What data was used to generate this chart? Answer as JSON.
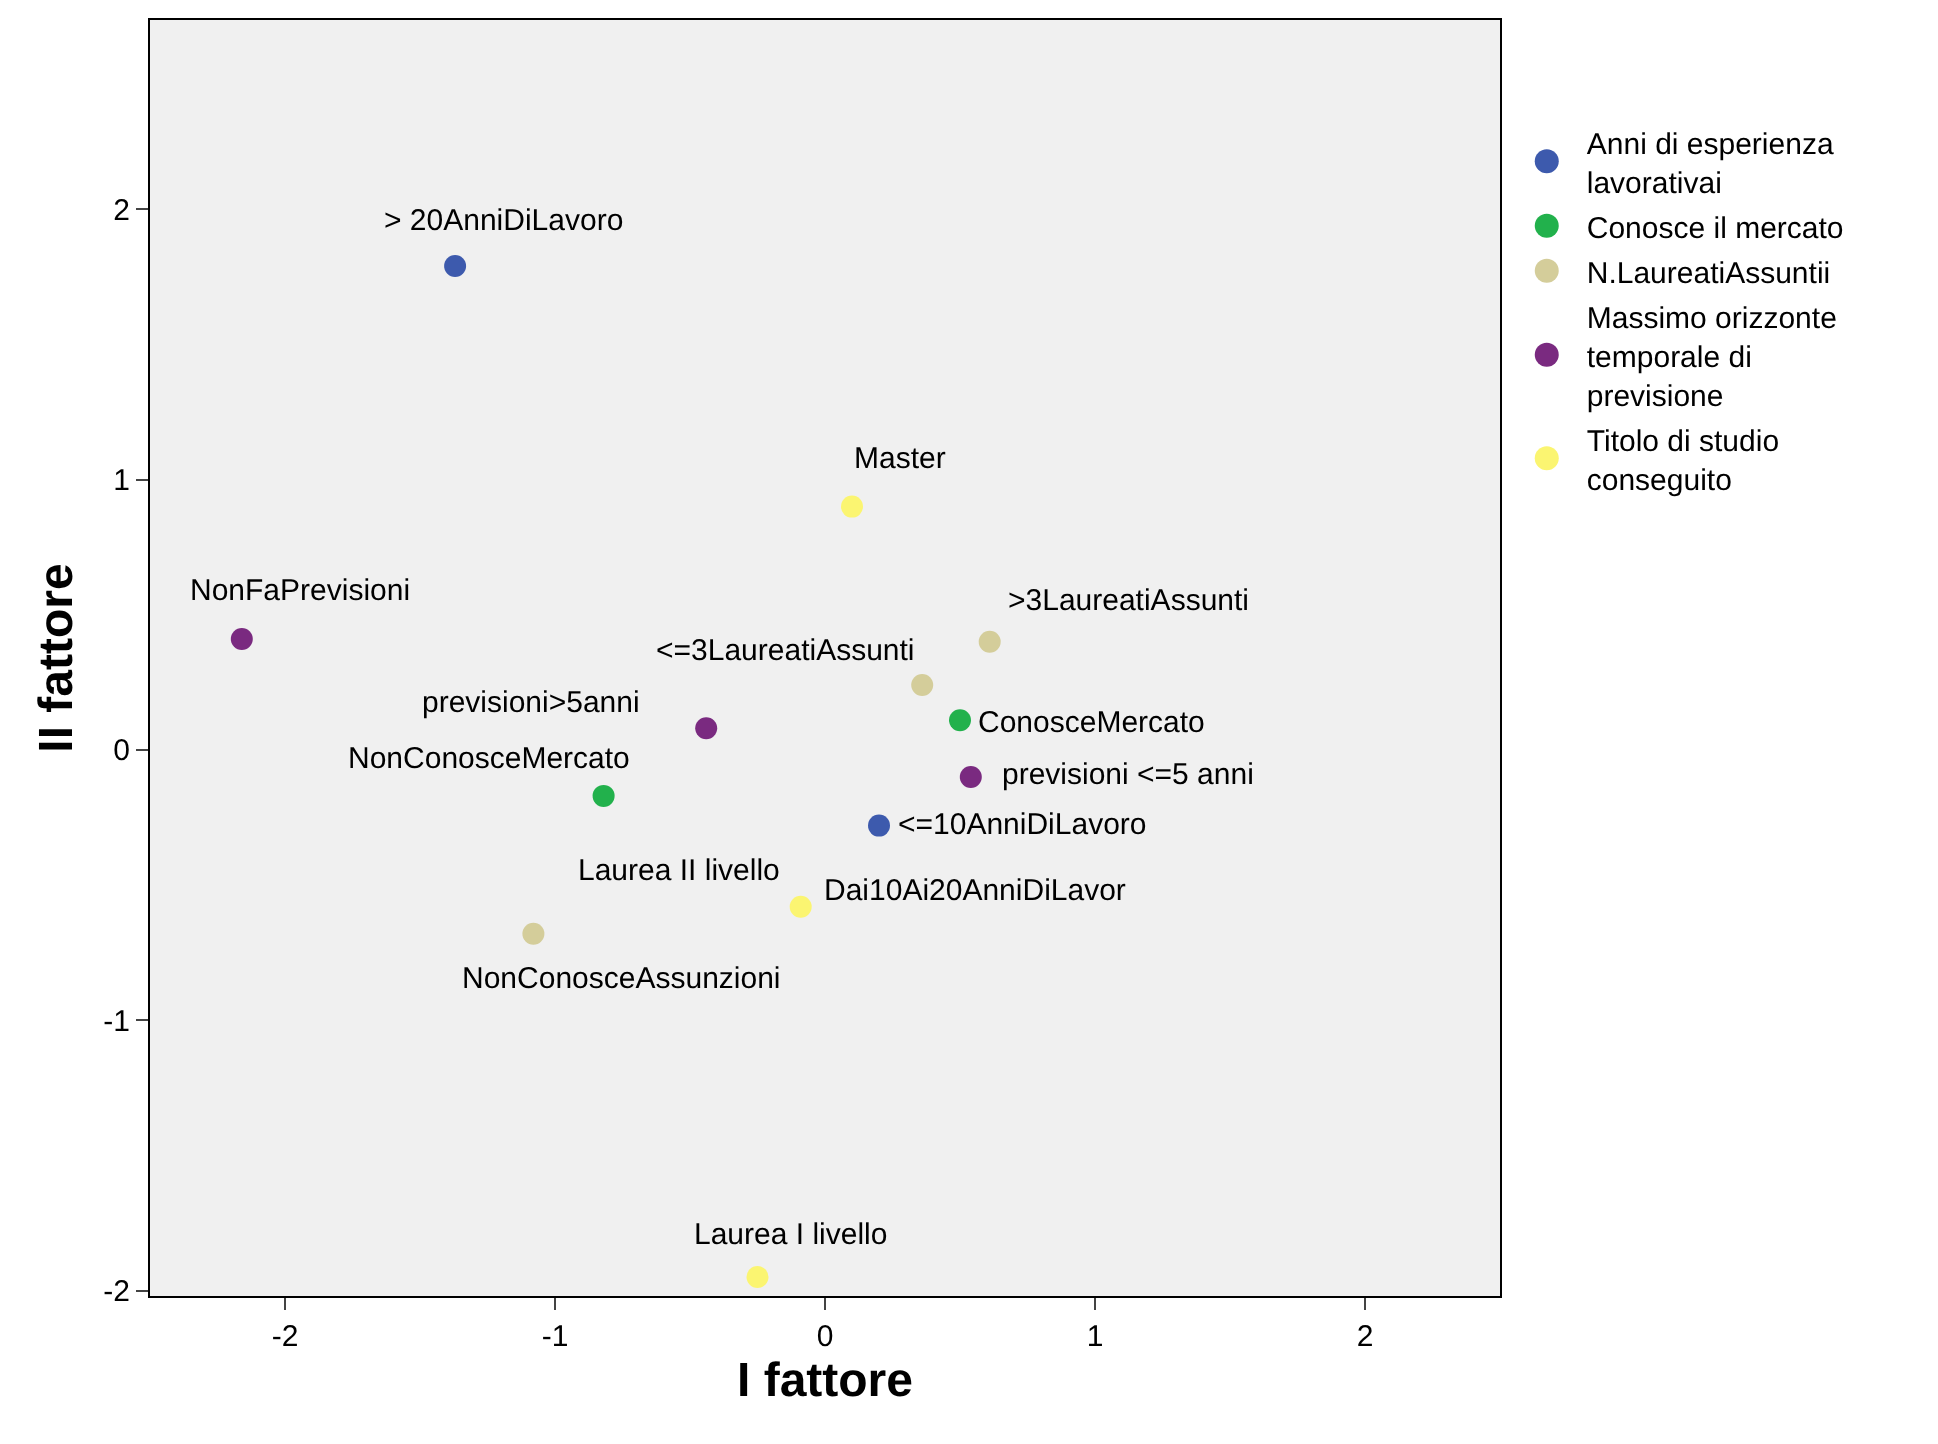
{
  "chart_data": {
    "type": "scatter",
    "xlabel": "I fattore",
    "ylabel": "II fattore",
    "xlim": [
      -2.5,
      2.5
    ],
    "ylim": [
      -2.02,
      2.7
    ],
    "xticks": [
      -2,
      -1,
      0,
      1,
      2
    ],
    "yticks": [
      -2,
      -1,
      0,
      1,
      2
    ],
    "grid": false,
    "legend": "top right",
    "marker": "circle",
    "series": [
      {
        "name": "Anni di esperienza lavorativai",
        "color": "#3d5aad",
        "x": [
          -1.37,
          0.2
        ],
        "values": [
          1.79,
          -0.28
        ]
      },
      {
        "name": "Conosce il mercato",
        "color": "#22b14c",
        "x": [
          0.5,
          -0.82
        ],
        "values": [
          0.11,
          -0.17
        ]
      },
      {
        "name": "N.LaureatiAssuntii",
        "color": "#d4cd9a",
        "x": [
          0.61,
          0.36,
          -1.08
        ],
        "values": [
          0.4,
          0.24,
          -0.68
        ]
      },
      {
        "name": "Massimo orizzonte temporale di previsione",
        "color": "#7a2a80",
        "x": [
          -2.16,
          -0.44,
          0.54
        ],
        "values": [
          0.41,
          0.08,
          -0.1
        ]
      },
      {
        "name": "Titolo di studio conseguito",
        "color": "#fbf571",
        "x": [
          0.1,
          -0.09,
          -0.25
        ],
        "values": [
          0.9,
          -0.58,
          -1.95
        ]
      }
    ],
    "annotations": [
      {
        "text": "> 20AnniDiLavoro",
        "x": -1.37,
        "y": 1.79
      },
      {
        "text": "<=10AnniDiLavoro",
        "x": 0.2,
        "y": -0.28
      },
      {
        "text": "Dai10Ai20AnniDiLavor",
        "x": -0.09,
        "y": -0.58
      },
      {
        "text": "ConosceMercato",
        "x": 0.5,
        "y": 0.11
      },
      {
        "text": "NonConosceMercato",
        "x": -0.82,
        "y": -0.17
      },
      {
        "text": ">3LaureatiAssunti",
        "x": 0.61,
        "y": 0.4
      },
      {
        "text": "<=3LaureatiAssunti",
        "x": 0.36,
        "y": 0.24
      },
      {
        "text": "NonConosceAssunzioni",
        "x": -1.08,
        "y": -0.68
      },
      {
        "text": "NonFaPrevisioni",
        "x": -2.16,
        "y": 0.41
      },
      {
        "text": "previsioni>5anni",
        "x": -0.44,
        "y": 0.08
      },
      {
        "text": "previsioni <=5 anni",
        "x": 0.54,
        "y": -0.1
      },
      {
        "text": "Master",
        "x": 0.1,
        "y": 0.9
      },
      {
        "text": "Laurea II livello",
        "x": -0.09,
        "y": -0.58
      },
      {
        "text": "Laurea I livello",
        "x": -0.25,
        "y": -1.95
      }
    ]
  }
}
